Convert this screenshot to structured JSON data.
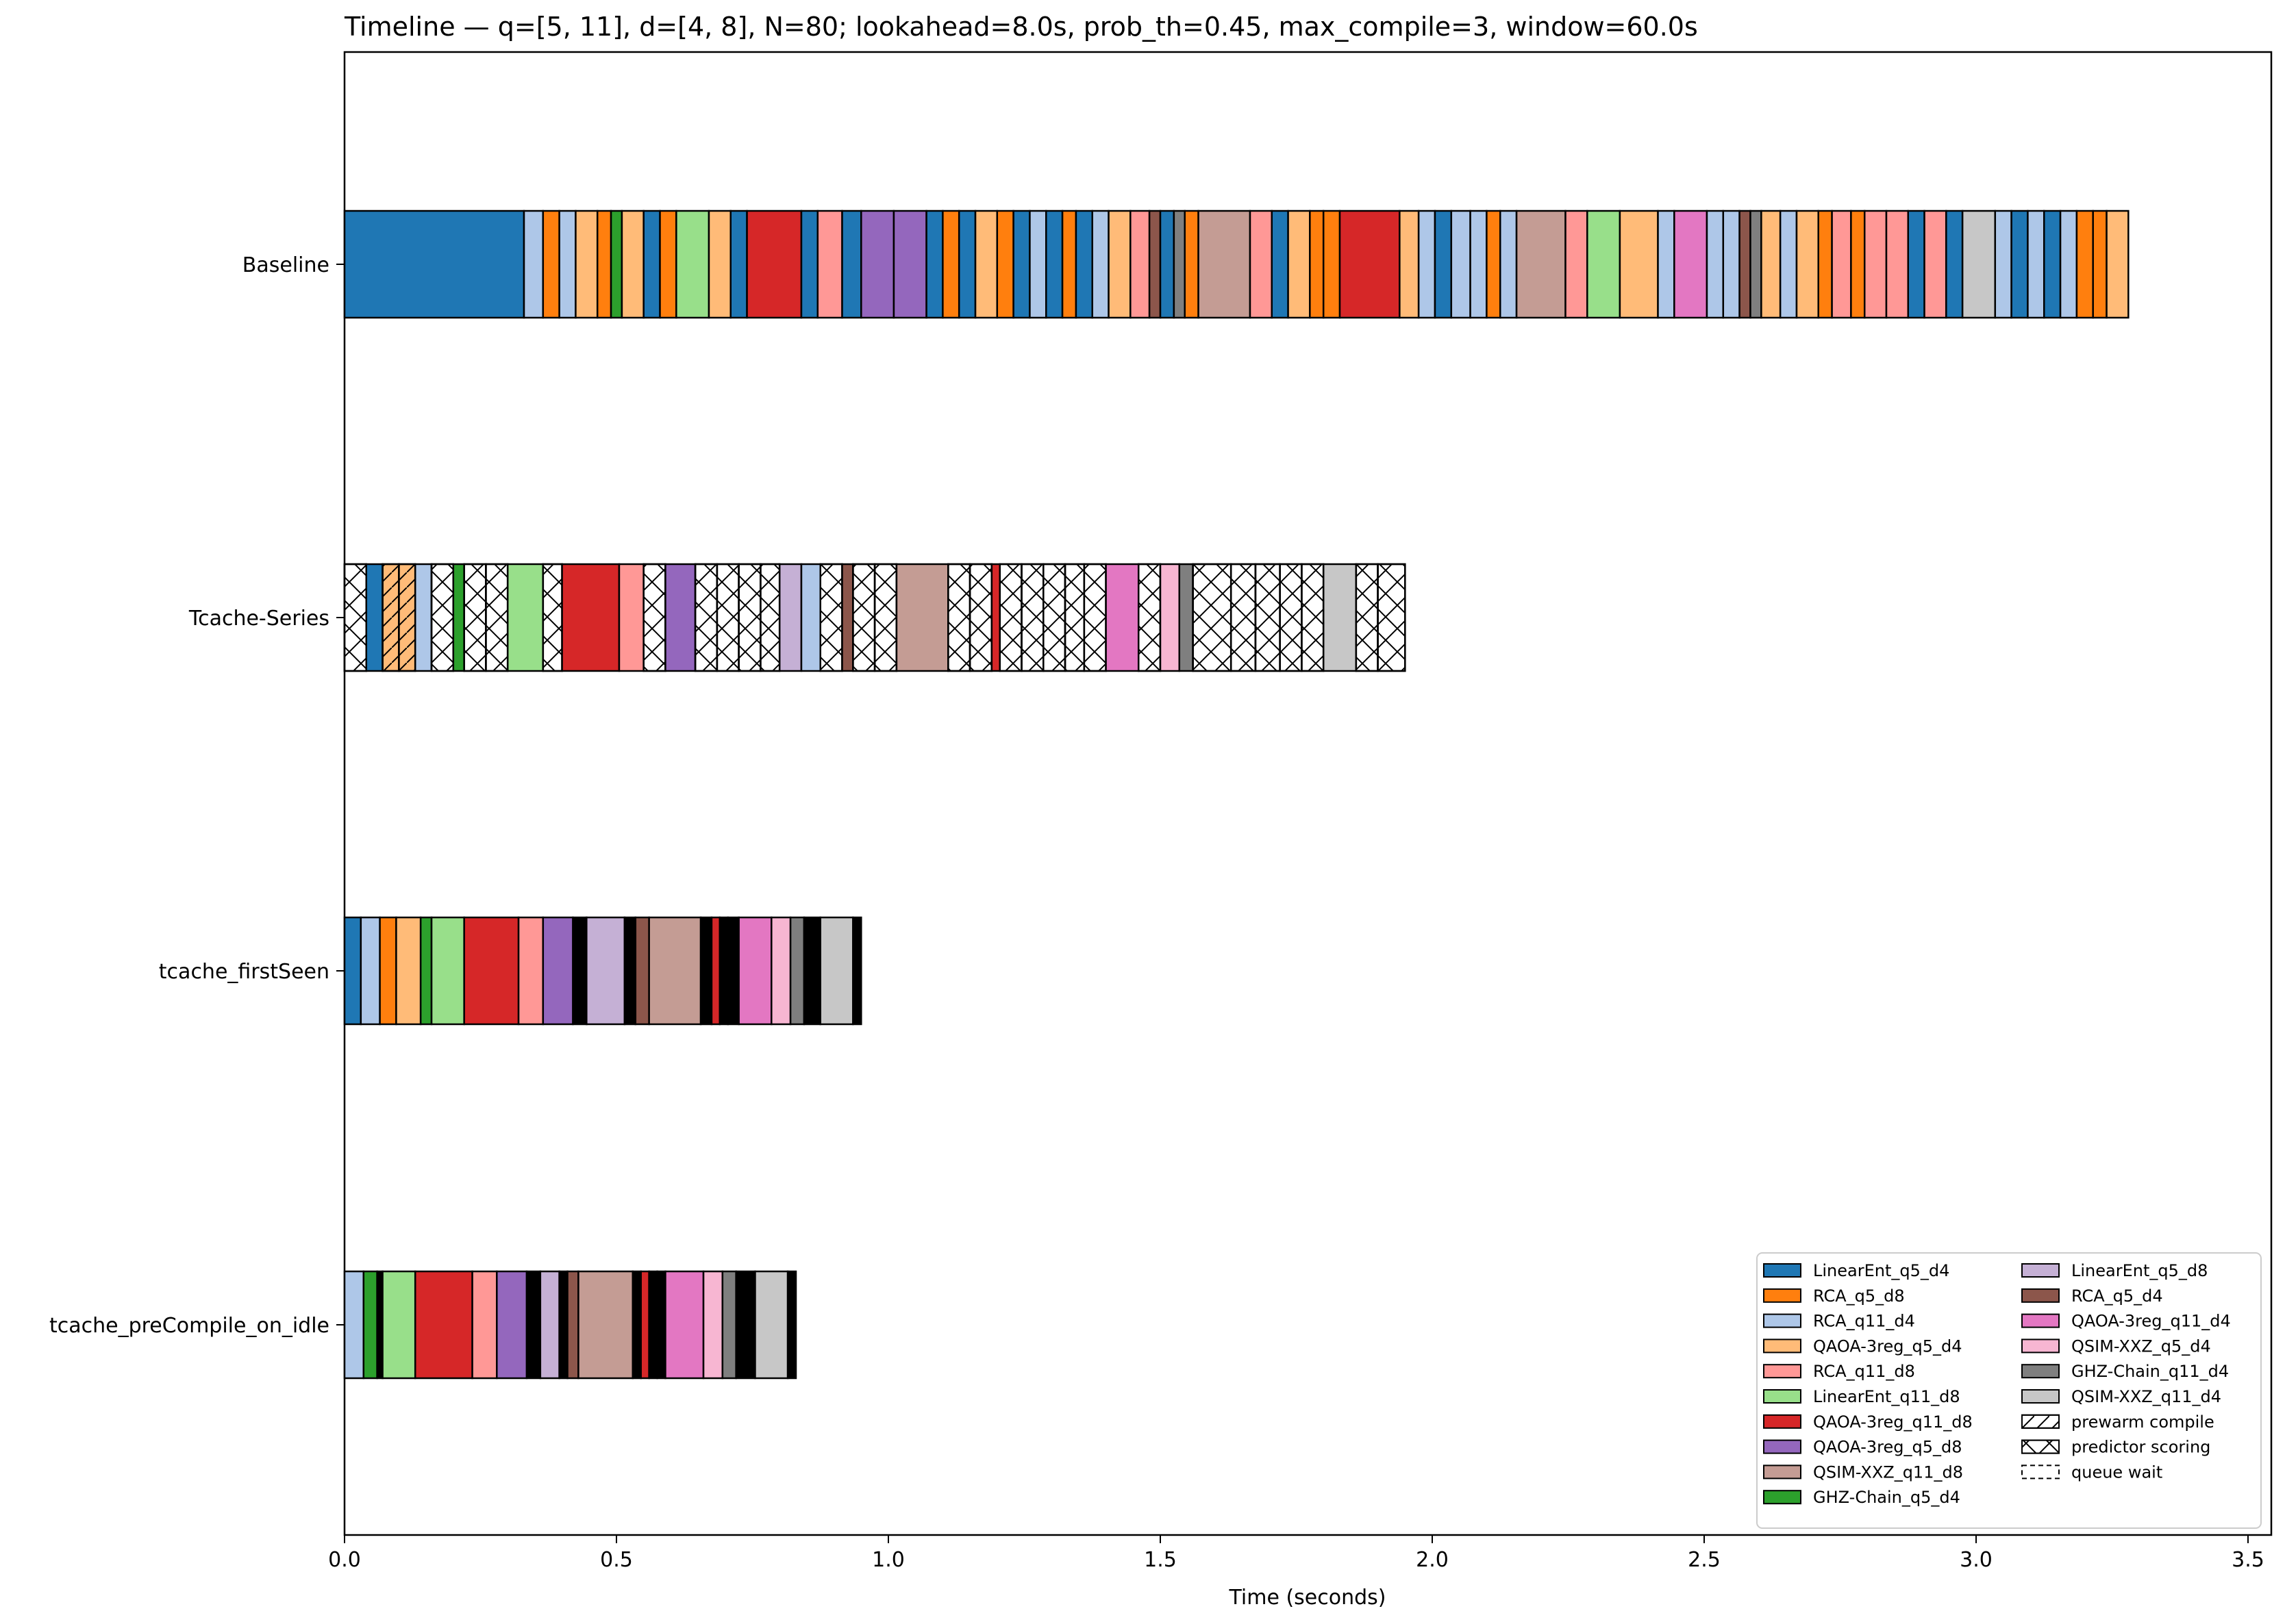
{
  "chart_data": {
    "type": "bar",
    "orientation": "horizontal-timeline",
    "title": "Timeline — q=[5, 11], d=[4, 8], N=80; lookahead=8.0s, prob_th=0.45, max_compile=3, window=60.0s",
    "xlabel": "Time (seconds)",
    "ylabel": "",
    "xlim": [
      0,
      3.55
    ],
    "xticks": [
      "0.0",
      "0.5",
      "1.0",
      "1.5",
      "2.0",
      "2.5",
      "3.0",
      "3.5"
    ],
    "grid": false,
    "legend_position": "lower-right",
    "rows": [
      {
        "name": "Baseline",
        "segments": [
          [
            "LinearEnt_q5_d4",
            0.0,
            0.33
          ],
          [
            "RCA_q11_d4",
            0.33,
            0.365
          ],
          [
            "RCA_q5_d8",
            0.365,
            0.395
          ],
          [
            "RCA_q11_d4",
            0.395,
            0.425
          ],
          [
            "QAOA-3reg_q5_d4",
            0.425,
            0.465
          ],
          [
            "RCA_q5_d8",
            0.465,
            0.49
          ],
          [
            "GHZ-Chain_q5_d4",
            0.49,
            0.51
          ],
          [
            "QAOA-3reg_q5_d4",
            0.51,
            0.55
          ],
          [
            "LinearEnt_q5_d4",
            0.55,
            0.58
          ],
          [
            "RCA_q5_d8",
            0.58,
            0.61
          ],
          [
            "LinearEnt_q11_d8",
            0.61,
            0.67
          ],
          [
            "QAOA-3reg_q5_d4",
            0.67,
            0.71
          ],
          [
            "LinearEnt_q5_d4",
            0.71,
            0.74
          ],
          [
            "QAOA-3reg_q11_d8",
            0.74,
            0.84
          ],
          [
            "LinearEnt_q5_d4",
            0.84,
            0.87
          ],
          [
            "RCA_q11_d8",
            0.87,
            0.915
          ],
          [
            "LinearEnt_q5_d4",
            0.915,
            0.95
          ],
          [
            "QAOA-3reg_q5_d8",
            0.95,
            1.01
          ],
          [
            "QAOA-3reg_q5_d8",
            1.01,
            1.07
          ],
          [
            "LinearEnt_q5_d4",
            1.07,
            1.1
          ],
          [
            "RCA_q5_d8",
            1.1,
            1.13
          ],
          [
            "LinearEnt_q5_d4",
            1.13,
            1.16
          ],
          [
            "QAOA-3reg_q5_d4",
            1.16,
            1.2
          ],
          [
            "RCA_q5_d8",
            1.2,
            1.23
          ],
          [
            "LinearEnt_q5_d4",
            1.23,
            1.26
          ],
          [
            "RCA_q11_d4",
            1.26,
            1.29
          ],
          [
            "LinearEnt_q5_d4",
            1.29,
            1.32
          ],
          [
            "RCA_q5_d8",
            1.32,
            1.345
          ],
          [
            "LinearEnt_q5_d4",
            1.345,
            1.375
          ],
          [
            "RCA_q11_d4",
            1.375,
            1.405
          ],
          [
            "QAOA-3reg_q5_d4",
            1.405,
            1.445
          ],
          [
            "RCA_q11_d8",
            1.445,
            1.48
          ],
          [
            "RCA_q5_d4",
            1.48,
            1.5
          ],
          [
            "LinearEnt_q5_d4",
            1.5,
            1.525
          ],
          [
            "GHZ-Chain_q11_d4",
            1.525,
            1.545
          ],
          [
            "RCA_q5_d8",
            1.545,
            1.57
          ],
          [
            "QSIM-XXZ_q11_d8",
            1.57,
            1.665
          ],
          [
            "RCA_q11_d8",
            1.665,
            1.705
          ],
          [
            "LinearEnt_q5_d4",
            1.705,
            1.735
          ],
          [
            "QAOA-3reg_q5_d4",
            1.735,
            1.775
          ],
          [
            "RCA_q5_d8",
            1.775,
            1.8
          ],
          [
            "RCA_q5_d8",
            1.8,
            1.83
          ],
          [
            "QAOA-3reg_q11_d8",
            1.83,
            1.94
          ],
          [
            "QAOA-3reg_q5_d4",
            1.94,
            1.975
          ],
          [
            "RCA_q11_d4",
            1.975,
            2.005
          ],
          [
            "LinearEnt_q5_d4",
            2.005,
            2.035
          ],
          [
            "RCA_q11_d4",
            2.035,
            2.07
          ],
          [
            "RCA_q11_d4",
            2.07,
            2.1
          ],
          [
            "RCA_q5_d8",
            2.1,
            2.125
          ],
          [
            "RCA_q11_d4",
            2.125,
            2.155
          ],
          [
            "QSIM-XXZ_q11_d8",
            2.155,
            2.245
          ],
          [
            "RCA_q11_d8",
            2.245,
            2.285
          ],
          [
            "LinearEnt_q11_d8",
            2.285,
            2.345
          ],
          [
            "QAOA-3reg_q5_d4",
            2.345,
            2.415
          ],
          [
            "RCA_q11_d4",
            2.415,
            2.445
          ],
          [
            "QAOA-3reg_q11_d4",
            2.445,
            2.505
          ],
          [
            "RCA_q11_d4",
            2.505,
            2.535
          ],
          [
            "RCA_q11_d4",
            2.535,
            2.565
          ],
          [
            "RCA_q5_d4",
            2.565,
            2.585
          ],
          [
            "GHZ-Chain_q11_d4",
            2.585,
            2.605
          ],
          [
            "QAOA-3reg_q5_d4",
            2.605,
            2.64
          ],
          [
            "RCA_q11_d4",
            2.64,
            2.67
          ],
          [
            "QAOA-3reg_q5_d4",
            2.67,
            2.71
          ],
          [
            "RCA_q5_d8",
            2.71,
            2.735
          ],
          [
            "RCA_q11_d8",
            2.735,
            2.77
          ],
          [
            "RCA_q5_d8",
            2.77,
            2.795
          ],
          [
            "RCA_q11_d8",
            2.795,
            2.835
          ],
          [
            "RCA_q11_d8",
            2.835,
            2.875
          ],
          [
            "LinearEnt_q5_d4",
            2.875,
            2.905
          ],
          [
            "RCA_q11_d8",
            2.905,
            2.945
          ],
          [
            "LinearEnt_q5_d4",
            2.945,
            2.975
          ],
          [
            "QSIM-XXZ_q11_d4",
            2.975,
            3.035
          ],
          [
            "RCA_q11_d4",
            3.035,
            3.065
          ],
          [
            "LinearEnt_q5_d4",
            3.065,
            3.095
          ],
          [
            "RCA_q11_d4",
            3.095,
            3.125
          ],
          [
            "LinearEnt_q5_d4",
            3.125,
            3.155
          ],
          [
            "RCA_q11_d4",
            3.155,
            3.185
          ],
          [
            "RCA_q5_d8",
            3.185,
            3.215
          ],
          [
            "RCA_q5_d8",
            3.215,
            3.24
          ],
          [
            "QAOA-3reg_q5_d4",
            3.24,
            3.28
          ]
        ]
      },
      {
        "name": "Tcache-Series",
        "segments": [
          [
            "predictor scoring",
            0.0,
            0.04
          ],
          [
            "LinearEnt_q5_d4",
            0.04,
            0.07
          ],
          [
            "prewarm compile",
            0.07,
            0.1,
            "QAOA-3reg_q5_d4"
          ],
          [
            "prewarm compile",
            0.1,
            0.13,
            "QAOA-3reg_q5_d4"
          ],
          [
            "RCA_q11_d4",
            0.13,
            0.16
          ],
          [
            "predictor scoring",
            0.16,
            0.2
          ],
          [
            "GHZ-Chain_q5_d4",
            0.2,
            0.22
          ],
          [
            "predictor scoring",
            0.22,
            0.26
          ],
          [
            "predictor scoring",
            0.26,
            0.3
          ],
          [
            "LinearEnt_q11_d8",
            0.3,
            0.365
          ],
          [
            "predictor scoring",
            0.365,
            0.4
          ],
          [
            "QAOA-3reg_q11_d8",
            0.4,
            0.505
          ],
          [
            "RCA_q11_d8",
            0.505,
            0.55
          ],
          [
            "predictor scoring",
            0.55,
            0.59
          ],
          [
            "QAOA-3reg_q5_d8",
            0.59,
            0.645
          ],
          [
            "predictor scoring",
            0.645,
            0.685
          ],
          [
            "predictor scoring",
            0.685,
            0.725
          ],
          [
            "predictor scoring",
            0.725,
            0.765
          ],
          [
            "predictor scoring",
            0.765,
            0.8
          ],
          [
            "LinearEnt_q5_d8",
            0.8,
            0.84
          ],
          [
            "RCA_q11_d4",
            0.84,
            0.875
          ],
          [
            "predictor scoring",
            0.875,
            0.915
          ],
          [
            "RCA_q5_d4",
            0.915,
            0.935
          ],
          [
            "predictor scoring",
            0.935,
            0.975
          ],
          [
            "predictor scoring",
            0.975,
            1.015
          ],
          [
            "QSIM-XXZ_q11_d8",
            1.015,
            1.11
          ],
          [
            "predictor scoring",
            1.11,
            1.15
          ],
          [
            "predictor scoring",
            1.15,
            1.19
          ],
          [
            "QAOA-3reg_q11_d8",
            1.19,
            1.205
          ],
          [
            "predictor scoring",
            1.205,
            1.245
          ],
          [
            "predictor scoring",
            1.245,
            1.285
          ],
          [
            "predictor scoring",
            1.285,
            1.325
          ],
          [
            "predictor scoring",
            1.325,
            1.36
          ],
          [
            "predictor scoring",
            1.36,
            1.4
          ],
          [
            "QAOA-3reg_q11_d4",
            1.4,
            1.46
          ],
          [
            "predictor scoring",
            1.46,
            1.5
          ],
          [
            "QSIM-XXZ_q5_d4",
            1.5,
            1.535
          ],
          [
            "GHZ-Chain_q11_d4",
            1.535,
            1.56
          ],
          [
            "predictor scoring",
            1.56,
            1.63
          ],
          [
            "predictor scoring",
            1.63,
            1.675
          ],
          [
            "predictor scoring",
            1.675,
            1.72
          ],
          [
            "predictor scoring",
            1.72,
            1.76
          ],
          [
            "predictor scoring",
            1.76,
            1.8
          ],
          [
            "QSIM-XXZ_q11_d4",
            1.8,
            1.86
          ],
          [
            "predictor scoring",
            1.86,
            1.9
          ],
          [
            "predictor scoring",
            1.9,
            1.95
          ]
        ]
      },
      {
        "name": "tcache_firstSeen",
        "segments": [
          [
            "LinearEnt_q5_d4",
            0.0,
            0.03
          ],
          [
            "RCA_q11_d4",
            0.03,
            0.065
          ],
          [
            "RCA_q5_d8",
            0.065,
            0.095
          ],
          [
            "QAOA-3reg_q5_d4",
            0.095,
            0.14
          ],
          [
            "GHZ-Chain_q5_d4",
            0.14,
            0.16
          ],
          [
            "LinearEnt_q11_d8",
            0.16,
            0.22
          ],
          [
            "QAOA-3reg_q11_d8",
            0.22,
            0.32
          ],
          [
            "RCA_q11_d8",
            0.32,
            0.365
          ],
          [
            "QAOA-3reg_q5_d8",
            0.365,
            0.42
          ],
          [
            "queue wait",
            0.42,
            0.445
          ],
          [
            "LinearEnt_q5_d8",
            0.445,
            0.515
          ],
          [
            "queue wait",
            0.515,
            0.535
          ],
          [
            "RCA_q5_d4",
            0.535,
            0.56
          ],
          [
            "QSIM-XXZ_q11_d8",
            0.56,
            0.655
          ],
          [
            "queue wait",
            0.655,
            0.675
          ],
          [
            "QAOA-3reg_q11_d8",
            0.675,
            0.69
          ],
          [
            "queue wait",
            0.69,
            0.705
          ],
          [
            "queue wait",
            0.705,
            0.725
          ],
          [
            "QAOA-3reg_q11_d4",
            0.725,
            0.785
          ],
          [
            "QSIM-XXZ_q5_d4",
            0.785,
            0.82
          ],
          [
            "GHZ-Chain_q11_d4",
            0.82,
            0.845
          ],
          [
            "queue wait",
            0.845,
            0.875
          ],
          [
            "QSIM-XXZ_q11_d4",
            0.875,
            0.935
          ],
          [
            "queue wait",
            0.935,
            0.95
          ]
        ]
      },
      {
        "name": "tcache_preCompile_on_idle",
        "segments": [
          [
            "RCA_q11_d4",
            0.0,
            0.035
          ],
          [
            "GHZ-Chain_q5_d4",
            0.035,
            0.06
          ],
          [
            "queue wait",
            0.06,
            0.07
          ],
          [
            "LinearEnt_q11_d8",
            0.07,
            0.13
          ],
          [
            "QAOA-3reg_q11_d8",
            0.13,
            0.235
          ],
          [
            "RCA_q11_d8",
            0.235,
            0.28
          ],
          [
            "QAOA-3reg_q5_d8",
            0.28,
            0.335
          ],
          [
            "queue wait",
            0.335,
            0.36
          ],
          [
            "LinearEnt_q5_d8",
            0.36,
            0.395
          ],
          [
            "queue wait",
            0.395,
            0.41
          ],
          [
            "RCA_q5_d4",
            0.41,
            0.43
          ],
          [
            "QSIM-XXZ_q11_d8",
            0.43,
            0.53
          ],
          [
            "queue wait",
            0.53,
            0.545
          ],
          [
            "QAOA-3reg_q11_d8",
            0.545,
            0.56
          ],
          [
            "queue wait",
            0.56,
            0.575
          ],
          [
            "queue wait",
            0.575,
            0.59
          ],
          [
            "QAOA-3reg_q11_d4",
            0.59,
            0.66
          ],
          [
            "QSIM-XXZ_q5_d4",
            0.66,
            0.695
          ],
          [
            "GHZ-Chain_q11_d4",
            0.695,
            0.72
          ],
          [
            "queue wait",
            0.72,
            0.755
          ],
          [
            "QSIM-XXZ_q11_d4",
            0.755,
            0.815
          ],
          [
            "queue wait",
            0.815,
            0.83
          ]
        ]
      }
    ],
    "legend": {
      "col1": [
        {
          "label": "LinearEnt_q5_d4",
          "color": "#1f77b4"
        },
        {
          "label": "RCA_q5_d8",
          "color": "#ff7f0e"
        },
        {
          "label": "RCA_q11_d4",
          "color": "#aec7e8"
        },
        {
          "label": "QAOA-3reg_q5_d4",
          "color": "#ffbb78"
        },
        {
          "label": "RCA_q11_d8",
          "color": "#ff9896"
        },
        {
          "label": "LinearEnt_q11_d8",
          "color": "#98df8a"
        },
        {
          "label": "QAOA-3reg_q11_d8",
          "color": "#d62728"
        },
        {
          "label": "QAOA-3reg_q5_d8",
          "color": "#9467bd"
        },
        {
          "label": "QSIM-XXZ_q11_d8",
          "color": "#c49c94"
        },
        {
          "label": "GHZ-Chain_q5_d4",
          "color": "#2ca02c"
        }
      ],
      "col2": [
        {
          "label": "LinearEnt_q5_d8",
          "color": "#c5b0d5"
        },
        {
          "label": "RCA_q5_d4",
          "color": "#8c564b"
        },
        {
          "label": "QAOA-3reg_q11_d4",
          "color": "#e377c2"
        },
        {
          "label": "QSIM-XXZ_q5_d4",
          "color": "#f7b6d2"
        },
        {
          "label": "GHZ-Chain_q11_d4",
          "color": "#7f7f7f"
        },
        {
          "label": "QSIM-XXZ_q11_d4",
          "color": "#c7c7c7"
        },
        {
          "label": "prewarm compile",
          "color": "#ffffff",
          "hatch": "diagonal"
        },
        {
          "label": "predictor scoring",
          "color": "#ffffff",
          "hatch": "cross"
        },
        {
          "label": "queue wait",
          "color": "#ffffff",
          "hatch": "dashed"
        }
      ]
    }
  }
}
